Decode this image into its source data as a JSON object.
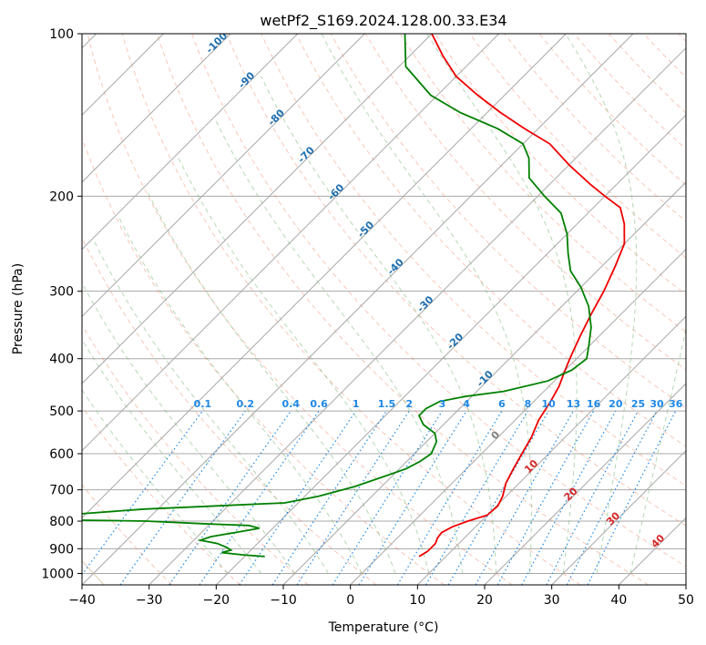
{
  "chart_data": {
    "type": "line",
    "title": "wetPf2_S169.2024.128.00.33.E34",
    "xlabel": "Temperature (°C)",
    "ylabel": "Pressure (hPa)",
    "xlim": [
      -40,
      50
    ],
    "ylim": [
      1050,
      100
    ],
    "yscale": "log",
    "grid": true,
    "x_ticks": [
      "−40",
      "−30",
      "−20",
      "−10",
      "0",
      "10",
      "20",
      "30",
      "40",
      "50"
    ],
    "x_tick_values": [
      -40,
      -30,
      -20,
      -10,
      0,
      10,
      20,
      30,
      40,
      50
    ],
    "y_ticks": [
      "100",
      "200",
      "300",
      "400",
      "500",
      "600",
      "700",
      "800",
      "900",
      "1000"
    ],
    "y_tick_values": [
      100,
      200,
      300,
      400,
      500,
      600,
      700,
      800,
      900,
      1000
    ],
    "skew": 45,
    "series": [
      {
        "role": "temperature",
        "color": "#ee0000",
        "points": [
          [
            6,
            930
          ],
          [
            6.5,
            910
          ],
          [
            6.5,
            880
          ],
          [
            6,
            860
          ],
          [
            5.8,
            840
          ],
          [
            6.5,
            820
          ],
          [
            8,
            800
          ],
          [
            10,
            780
          ],
          [
            10.2,
            750
          ],
          [
            9.5,
            720
          ],
          [
            8,
            680
          ],
          [
            7,
            640
          ],
          [
            6,
            600
          ],
          [
            5,
            560
          ],
          [
            3.5,
            520
          ],
          [
            2.5,
            480
          ],
          [
            1.5,
            450
          ],
          [
            0.5,
            430
          ],
          [
            -0.5,
            410
          ],
          [
            -1.5,
            390
          ],
          [
            -3,
            360
          ],
          [
            -4.5,
            330
          ],
          [
            -6,
            300
          ],
          [
            -8,
            270
          ],
          [
            -10,
            245
          ],
          [
            -13,
            225
          ],
          [
            -16,
            210
          ],
          [
            -20,
            200
          ],
          [
            -24,
            190
          ],
          [
            -30,
            175
          ],
          [
            -36,
            160
          ],
          [
            -42,
            150
          ],
          [
            -48,
            140
          ],
          [
            -54,
            130
          ],
          [
            -60,
            120
          ],
          [
            -65,
            110
          ],
          [
            -70,
            100
          ]
        ]
      },
      {
        "role": "dewpoint",
        "color": "#008000",
        "points": [
          [
            -17,
            930
          ],
          [
            -20,
            925
          ],
          [
            -22,
            920
          ],
          [
            -24,
            915
          ],
          [
            -23,
            905
          ],
          [
            -24,
            895
          ],
          [
            -26,
            880
          ],
          [
            -29,
            868
          ],
          [
            -28,
            855
          ],
          [
            -25,
            840
          ],
          [
            -22,
            825
          ],
          [
            -24,
            815
          ],
          [
            -30,
            810
          ],
          [
            -40,
            800
          ],
          [
            -55,
            795
          ],
          [
            -60,
            792
          ],
          [
            -42,
            760
          ],
          [
            -22,
            740
          ],
          [
            -18,
            720
          ],
          [
            -14,
            690
          ],
          [
            -11,
            660
          ],
          [
            -9,
            640
          ],
          [
            -8,
            620
          ],
          [
            -7.5,
            600
          ],
          [
            -8.5,
            570
          ],
          [
            -10,
            550
          ],
          [
            -13,
            530
          ],
          [
            -15,
            510
          ],
          [
            -15,
            495
          ],
          [
            -14,
            480
          ],
          [
            -11,
            470
          ],
          [
            -6,
            460
          ],
          [
            -1,
            440
          ],
          [
            1,
            420
          ],
          [
            1.5,
            400
          ],
          [
            0,
            380
          ],
          [
            -2.5,
            350
          ],
          [
            -6,
            320
          ],
          [
            -10,
            295
          ],
          [
            -14,
            275
          ],
          [
            -17,
            255
          ],
          [
            -20,
            235
          ],
          [
            -24,
            215
          ],
          [
            -29,
            200
          ],
          [
            -34,
            185
          ],
          [
            -37,
            170
          ],
          [
            -40,
            160
          ],
          [
            -46,
            150
          ],
          [
            -54,
            140
          ],
          [
            -61,
            130
          ],
          [
            -69,
            115
          ],
          [
            -74,
            100
          ]
        ]
      }
    ],
    "isotherm_labels": [
      "-100",
      "-90",
      "-80",
      "-70",
      "-60",
      "-50",
      "-40",
      "-30",
      "-20",
      "-10",
      "0",
      "10",
      "20",
      "30",
      "40"
    ],
    "mixing_ratio_labels": [
      "0.1",
      "0.2",
      "0.4",
      "0.6",
      "1",
      "1.5",
      "2",
      "3",
      "4",
      "6",
      "8",
      "10",
      "13",
      "16",
      "20",
      "25",
      "30",
      "36"
    ]
  },
  "colors": {
    "isotherm": "#a8a8a8",
    "dry_adiabat": "#f08060",
    "moist_adiabat": "#79b879",
    "mixing_ratio": "#1e88e5",
    "isotherm_label_cold": "#1f6fb0",
    "isotherm_label_warm": "#d62728",
    "isotherm_label_zero": "#808080",
    "dry_adiabat_strong": "#c8a070"
  }
}
